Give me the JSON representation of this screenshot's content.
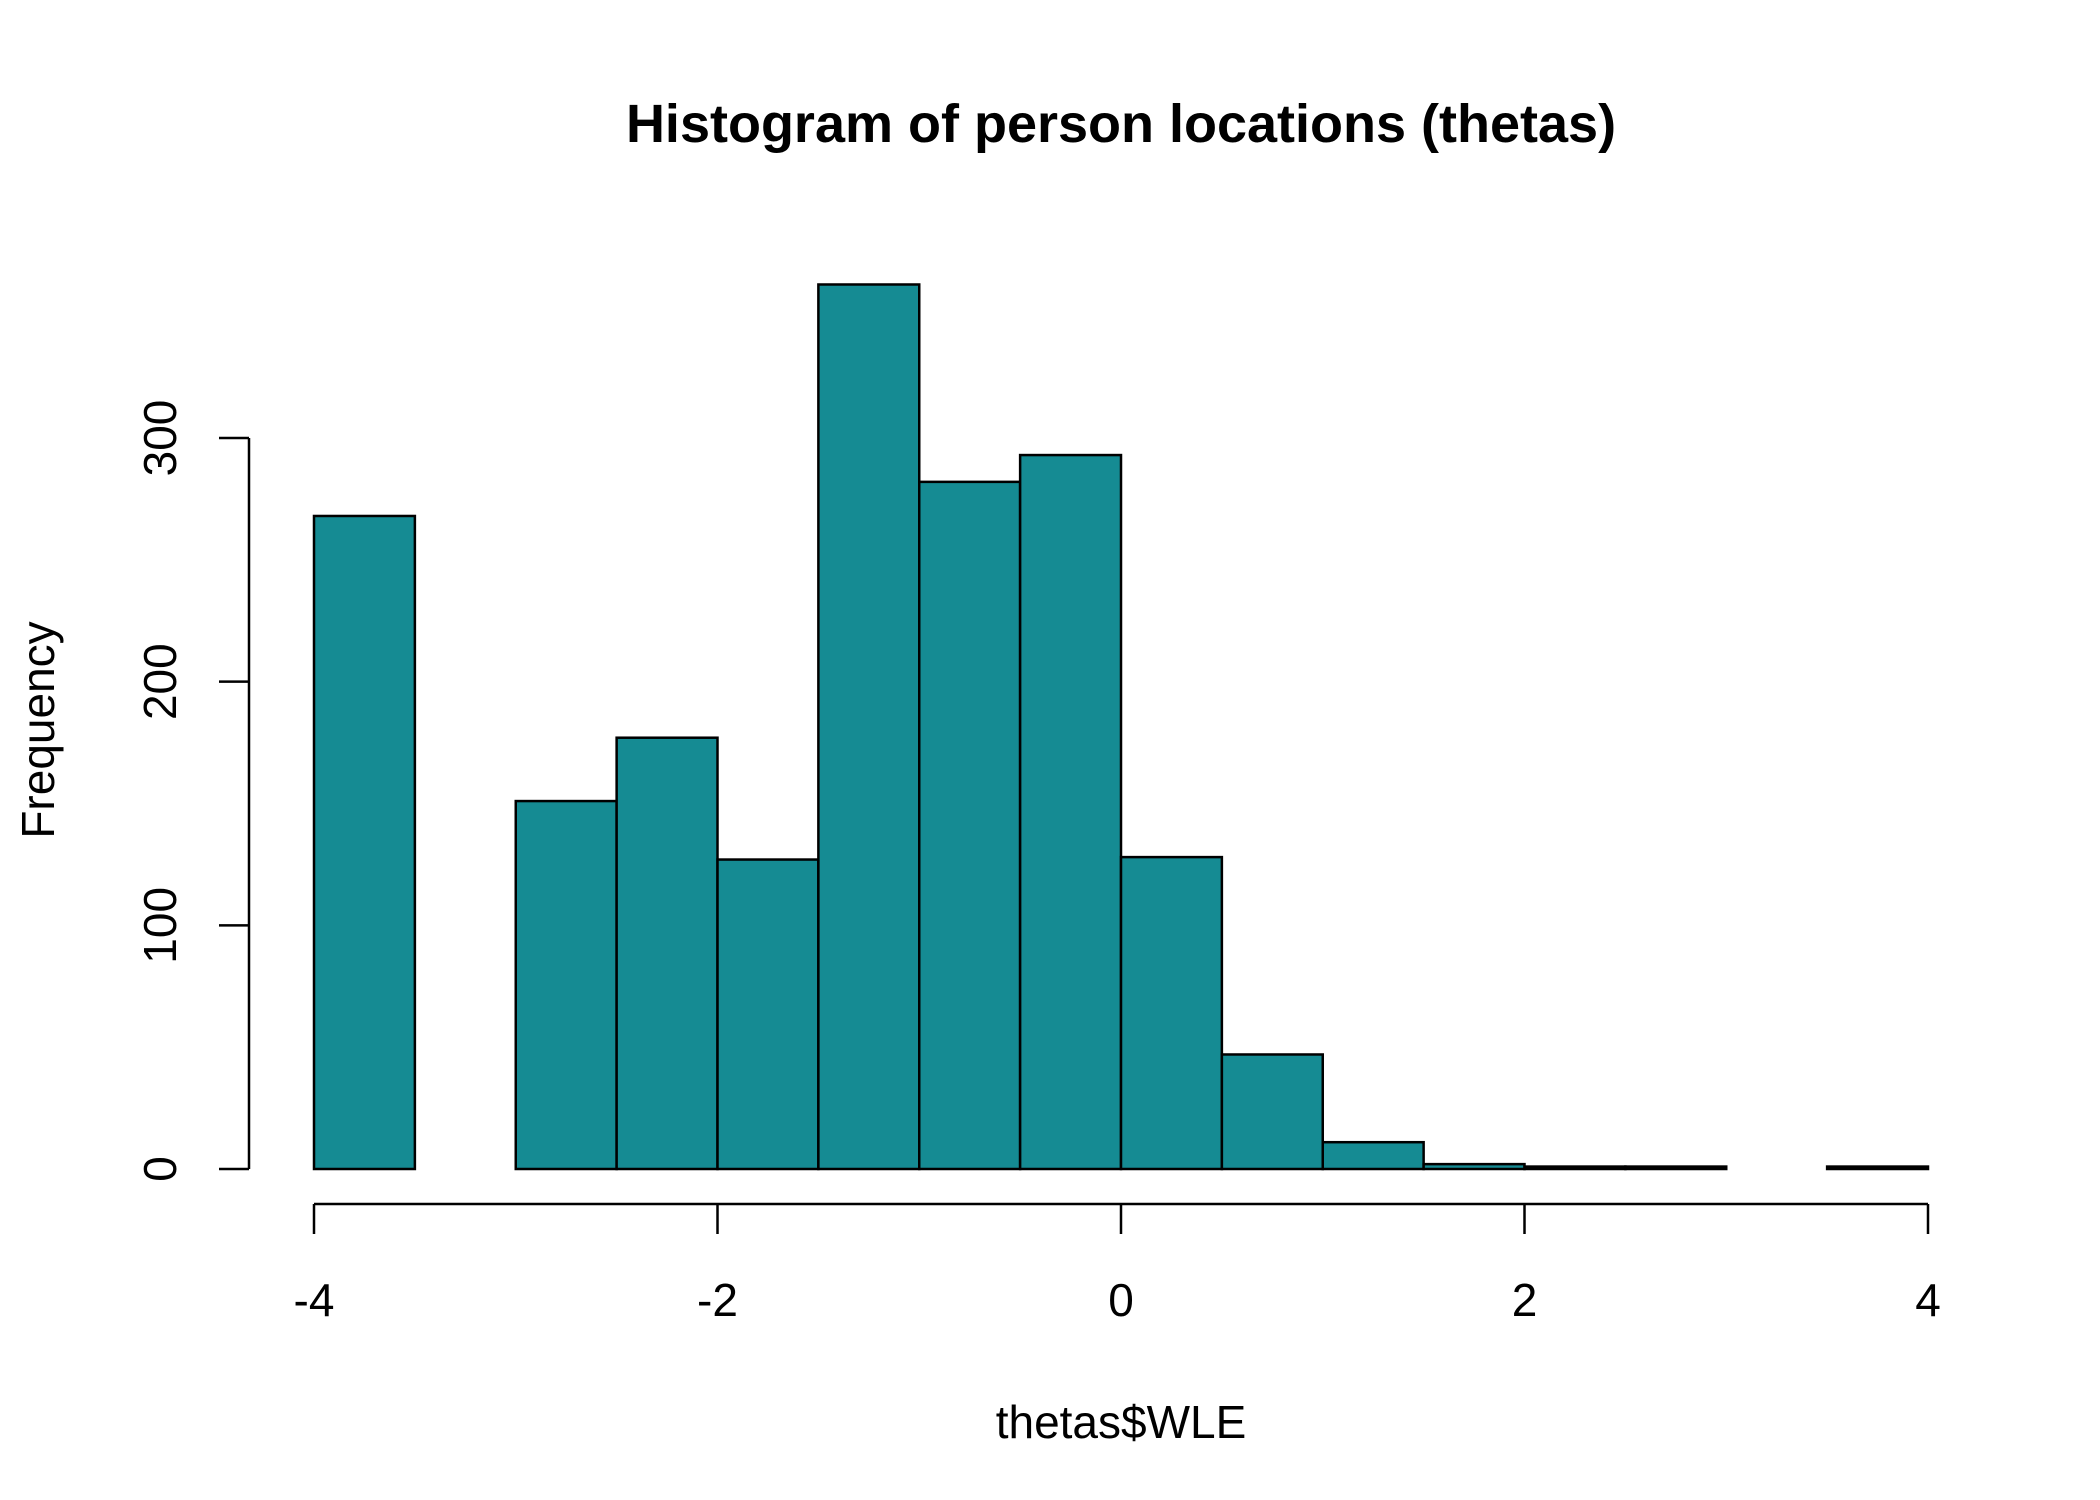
{
  "chart_data": {
    "type": "bar",
    "title": "Histogram of person locations (thetas)",
    "xlabel": "thetas$WLE",
    "ylabel": "Frequency",
    "bin_edges": [
      -4,
      -3.5,
      -3,
      -2.5,
      -2,
      -1.5,
      -1,
      -0.5,
      0,
      0.5,
      1,
      1.5,
      2,
      2.5,
      3,
      3.5,
      4
    ],
    "values": [
      268,
      0,
      151,
      177,
      127,
      363,
      282,
      293,
      128,
      47,
      11,
      2,
      1,
      1,
      0,
      1
    ],
    "xlim": [
      -4,
      4
    ],
    "ylim": [
      0,
      300
    ],
    "x_ticks": [
      -4,
      -2,
      0,
      2,
      4
    ],
    "x_tick_labels": [
      "-4",
      "-2",
      "0",
      "2",
      "4"
    ],
    "y_ticks": [
      0,
      100,
      200,
      300
    ],
    "y_tick_labels": [
      "0",
      "100",
      "200",
      "300"
    ],
    "grid": false,
    "bar_color": "#158b93"
  }
}
